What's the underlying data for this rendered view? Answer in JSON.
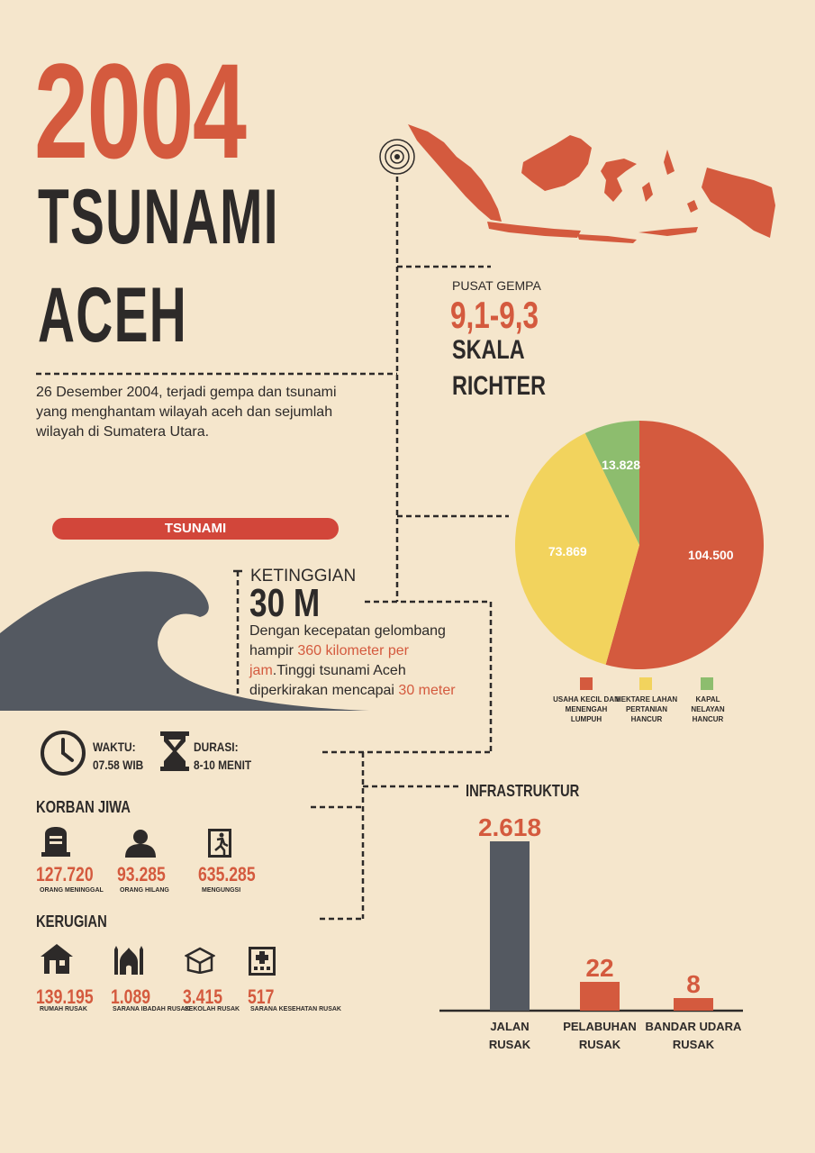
{
  "header": {
    "year": "2004",
    "title_line1": "TSUNAMI",
    "title_line2": "ACEH",
    "intro": "26 Desember 2004, terjadi gempa dan tsunami yang menghantam wilayah aceh dan sejumlah wilayah di Sumatera Utara."
  },
  "quake": {
    "label": "PUSAT GEMPA",
    "value": "9,1-9,3",
    "unit_line1": "SKALA",
    "unit_line2": "RICHTER"
  },
  "tsunami": {
    "pill": "TSUNAMI",
    "height_label": "KETINGGIAN",
    "height_value": "30 M",
    "desc_1": "Dengan kecepatan gelombang hampir ",
    "desc_speed": "360 kilometer per jam",
    "desc_2": ".Tinggi tsunami Aceh diperkirakan mencapai ",
    "desc_height": "30 meter"
  },
  "time": {
    "waktu_label": "WAKTU:",
    "waktu_value": "07.58 WIB",
    "durasi_label": "DURASI:",
    "durasi_value": "8-10 MENIT"
  },
  "korban": {
    "title": "KORBAN JIWA",
    "items": [
      {
        "icon": "gravestone-icon",
        "value": "127.720",
        "label": "ORANG MENINGGAL"
      },
      {
        "icon": "person-icon",
        "value": "93.285",
        "label": "ORANG HILANG"
      },
      {
        "icon": "exit-icon",
        "value": "635.285",
        "label": "MENGUNGSI"
      }
    ]
  },
  "kerugian": {
    "title": "KERUGIAN",
    "items": [
      {
        "icon": "house-icon",
        "value": "139.195",
        "label": "RUMAH RUSAK"
      },
      {
        "icon": "mosque-icon",
        "value": "1.089",
        "label": "SARANA IBADAH RUSAK"
      },
      {
        "icon": "book-icon",
        "value": "3.415",
        "label": "SEKOLAH RUSAK"
      },
      {
        "icon": "hospital-icon",
        "value": "517",
        "label": "SARANA KESEHATAN RUSAK"
      }
    ]
  },
  "chart_data": [
    {
      "type": "pie",
      "slices": [
        {
          "label": "USAHA KECIL DAN MENENGAH LUMPUH",
          "value": 104500,
          "display": "104.500",
          "color": "#d45a3e"
        },
        {
          "label": "HEKTARE LAHAN PERTANIAN HANCUR",
          "value": 73869,
          "display": "73.869",
          "color": "#f2d35d"
        },
        {
          "label": "KAPAL NELAYAN HANCUR",
          "value": 13828,
          "display": "13.828",
          "color": "#8dbd6e"
        }
      ],
      "legend": [
        "USAHA KECIL DAN MENENGAH LUMPUH",
        "HEKTARE LAHAN PERTANIAN HANCUR",
        "KAPAL NELAYAN HANCUR"
      ]
    },
    {
      "type": "bar",
      "title": "INFRASTRUKTUR",
      "categories": [
        "JALAN RUSAK",
        "PELABUHAN RUSAK",
        "BANDAR UDARA RUSAK"
      ],
      "values": [
        2618,
        22,
        8
      ],
      "display": [
        "2.618",
        "22",
        "8"
      ],
      "colors": [
        "#545961",
        "#d45a3e",
        "#d45a3e"
      ]
    }
  ]
}
